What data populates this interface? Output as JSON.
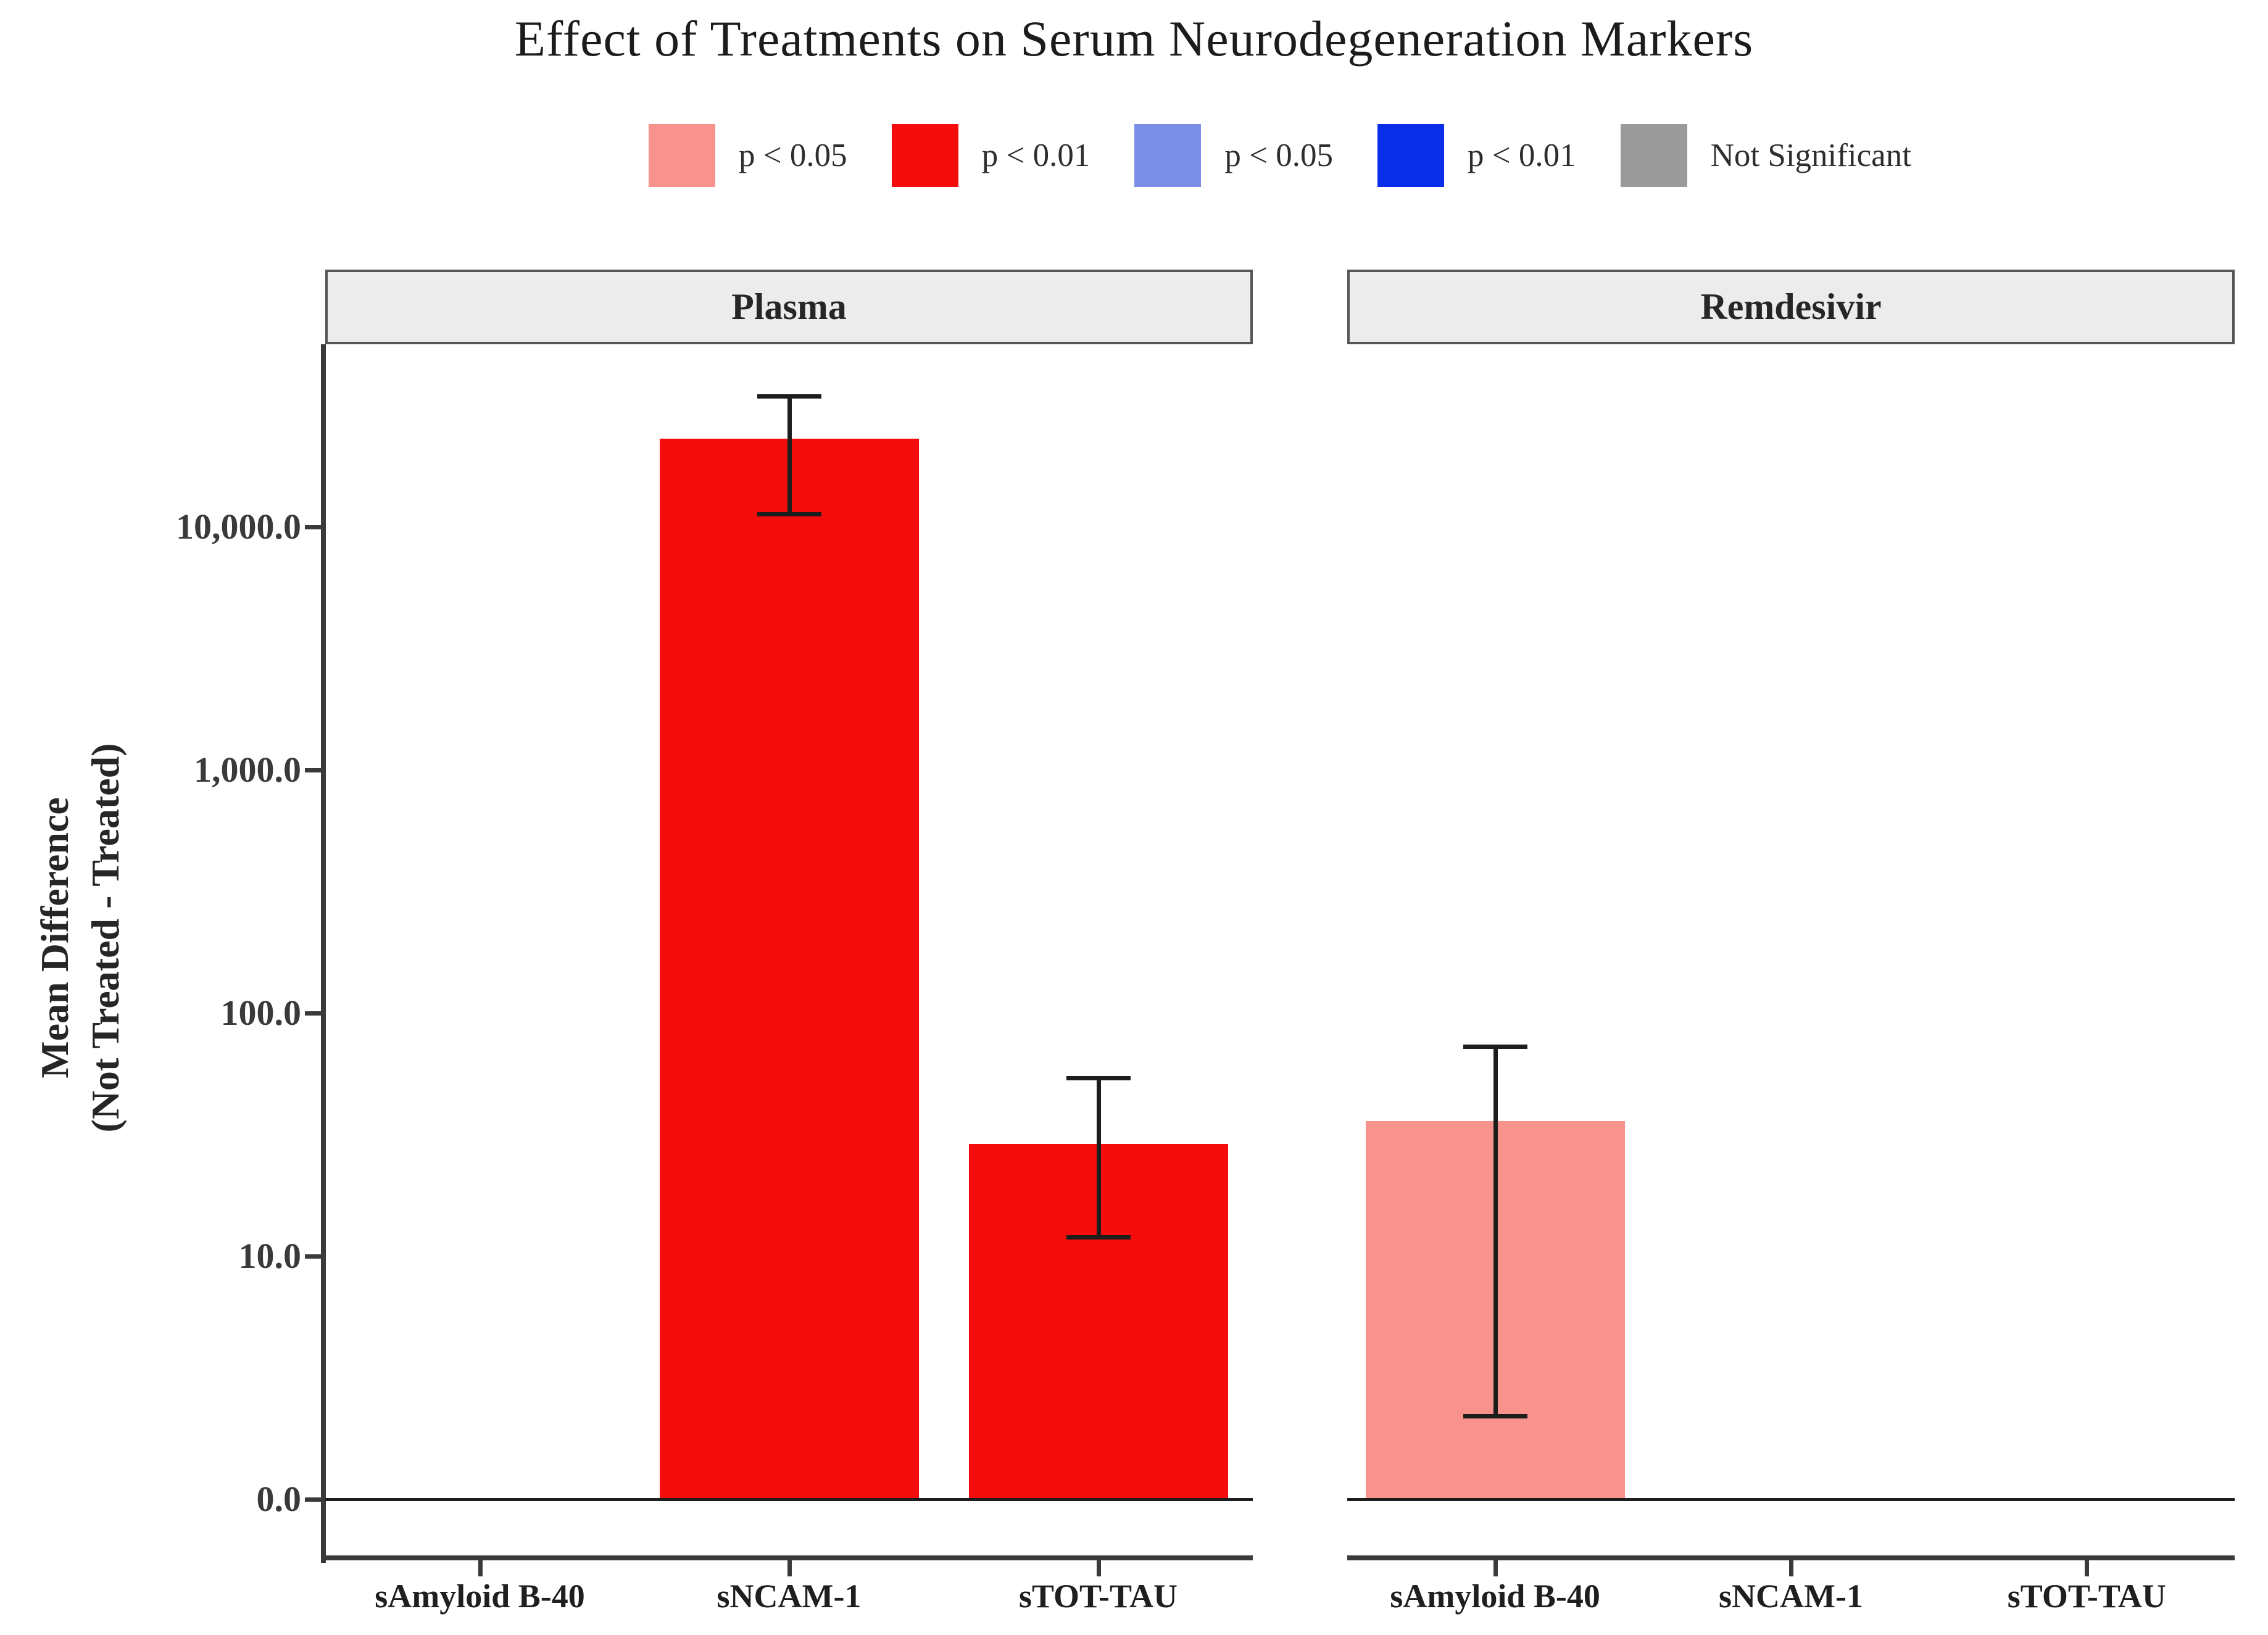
{
  "chart_data": {
    "type": "bar",
    "title": "Effect of Treatments on Serum Neurodegeneration Markers",
    "ylabel_lines": [
      "Mean Difference",
      "(Not Treated - Treated)"
    ],
    "ylabel": "Mean Difference (Not Treated - Treated)",
    "scale": "pseudo-log10, zero shown at baseline",
    "ylim_pseudo_log": [
      0,
      56000
    ],
    "grid": "off",
    "y_ticks": [
      {
        "label": "0.0",
        "value": 0
      },
      {
        "label": "10.0",
        "value": 10
      },
      {
        "label": "100.0",
        "value": 100
      },
      {
        "label": "1,000.0",
        "value": 1000
      },
      {
        "label": "10,000.0",
        "value": 10000
      }
    ],
    "legend": {
      "position": "top",
      "items": [
        {
          "label": "p < 0.05",
          "color": "#F7928C"
        },
        {
          "label": "p < 0.01",
          "color": "#F50D0D"
        },
        {
          "label": "p < 0.05",
          "color": "#7B8EE8"
        },
        {
          "label": "p < 0.01",
          "color": "#0A2EE8"
        },
        {
          "label": "Not Significant",
          "color": "#9A9A9A"
        }
      ]
    },
    "facets": [
      {
        "label": "Plasma",
        "categories": [
          "sAmyloid B-40",
          "sNCAM-1",
          "sTOT-TAU"
        ],
        "bars": [
          {
            "category": "sAmyloid B-40",
            "value": null,
            "lower": null,
            "upper": null,
            "significance": null,
            "color": null
          },
          {
            "category": "sNCAM-1",
            "value": 23000,
            "lower": 11300,
            "upper": 34500,
            "significance": "p < 0.01",
            "color": "#F50D0D"
          },
          {
            "category": "sTOT-TAU",
            "value": 29,
            "lower": 12,
            "upper": 54,
            "significance": "p < 0.01",
            "color": "#F50D0D"
          }
        ]
      },
      {
        "label": "Remdesivir",
        "categories": [
          "sAmyloid B-40",
          "sNCAM-1",
          "sTOT-TAU"
        ],
        "bars": [
          {
            "category": "sAmyloid B-40",
            "value": 36,
            "lower": 2.2,
            "upper": 73,
            "significance": "p < 0.05",
            "color": "#F7928C"
          },
          {
            "category": "sNCAM-1",
            "value": null,
            "lower": null,
            "upper": null,
            "significance": null,
            "color": null
          },
          {
            "category": "sTOT-TAU",
            "value": null,
            "lower": null,
            "upper": null,
            "significance": null,
            "color": null
          }
        ]
      }
    ],
    "colors": {
      "axis": "#3a3a3a",
      "error_bar": "#1d1d1d",
      "strip_background": "#ececec",
      "strip_border": "#555555",
      "background": "#ffffff"
    }
  }
}
